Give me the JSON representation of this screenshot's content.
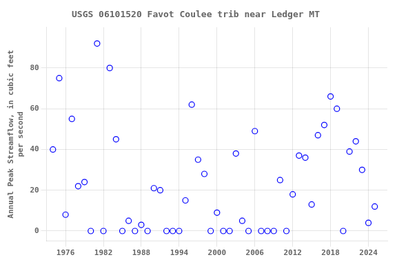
{
  "chart_data": {
    "type": "scatter",
    "title": "USGS 06101520 Favot Coulee trib near Ledger MT",
    "ylabel": "Annual Peak Streamflow, in cubic feet\nper second",
    "x": [
      1974,
      1975,
      1976,
      1977,
      1978,
      1979,
      1980,
      1981,
      1982,
      1983,
      1984,
      1985,
      1986,
      1987,
      1988,
      1989,
      1990,
      1991,
      1992,
      1993,
      1994,
      1995,
      1996,
      1997,
      1998,
      1999,
      2000,
      2001,
      2002,
      2003,
      2004,
      2005,
      2006,
      2007,
      2008,
      2009,
      2010,
      2011,
      2012,
      2013,
      2014,
      2015,
      2016,
      2017,
      2018,
      2019,
      2020,
      2021,
      2022,
      2023,
      2024,
      2025
    ],
    "values": [
      40,
      75,
      8,
      55,
      22,
      24,
      0,
      92,
      0,
      80,
      45,
      0,
      5,
      0,
      3,
      0,
      21,
      20,
      0,
      0,
      0,
      15,
      62,
      35,
      28,
      0,
      9,
      0,
      0,
      38,
      5,
      0,
      49,
      0,
      0,
      0,
      25,
      0,
      18,
      37,
      36,
      13,
      47,
      52,
      66,
      60,
      0,
      39,
      44,
      30,
      4,
      12
    ],
    "color": "blue",
    "marker": "circle",
    "xlim": [
      1973,
      2027
    ],
    "ylim": [
      -5,
      100
    ],
    "xticks": [
      1976,
      1982,
      1988,
      1994,
      2000,
      2006,
      2012,
      2018,
      2024
    ],
    "yticks": [
      0,
      20,
      40,
      60,
      80
    ],
    "grid": true
  }
}
